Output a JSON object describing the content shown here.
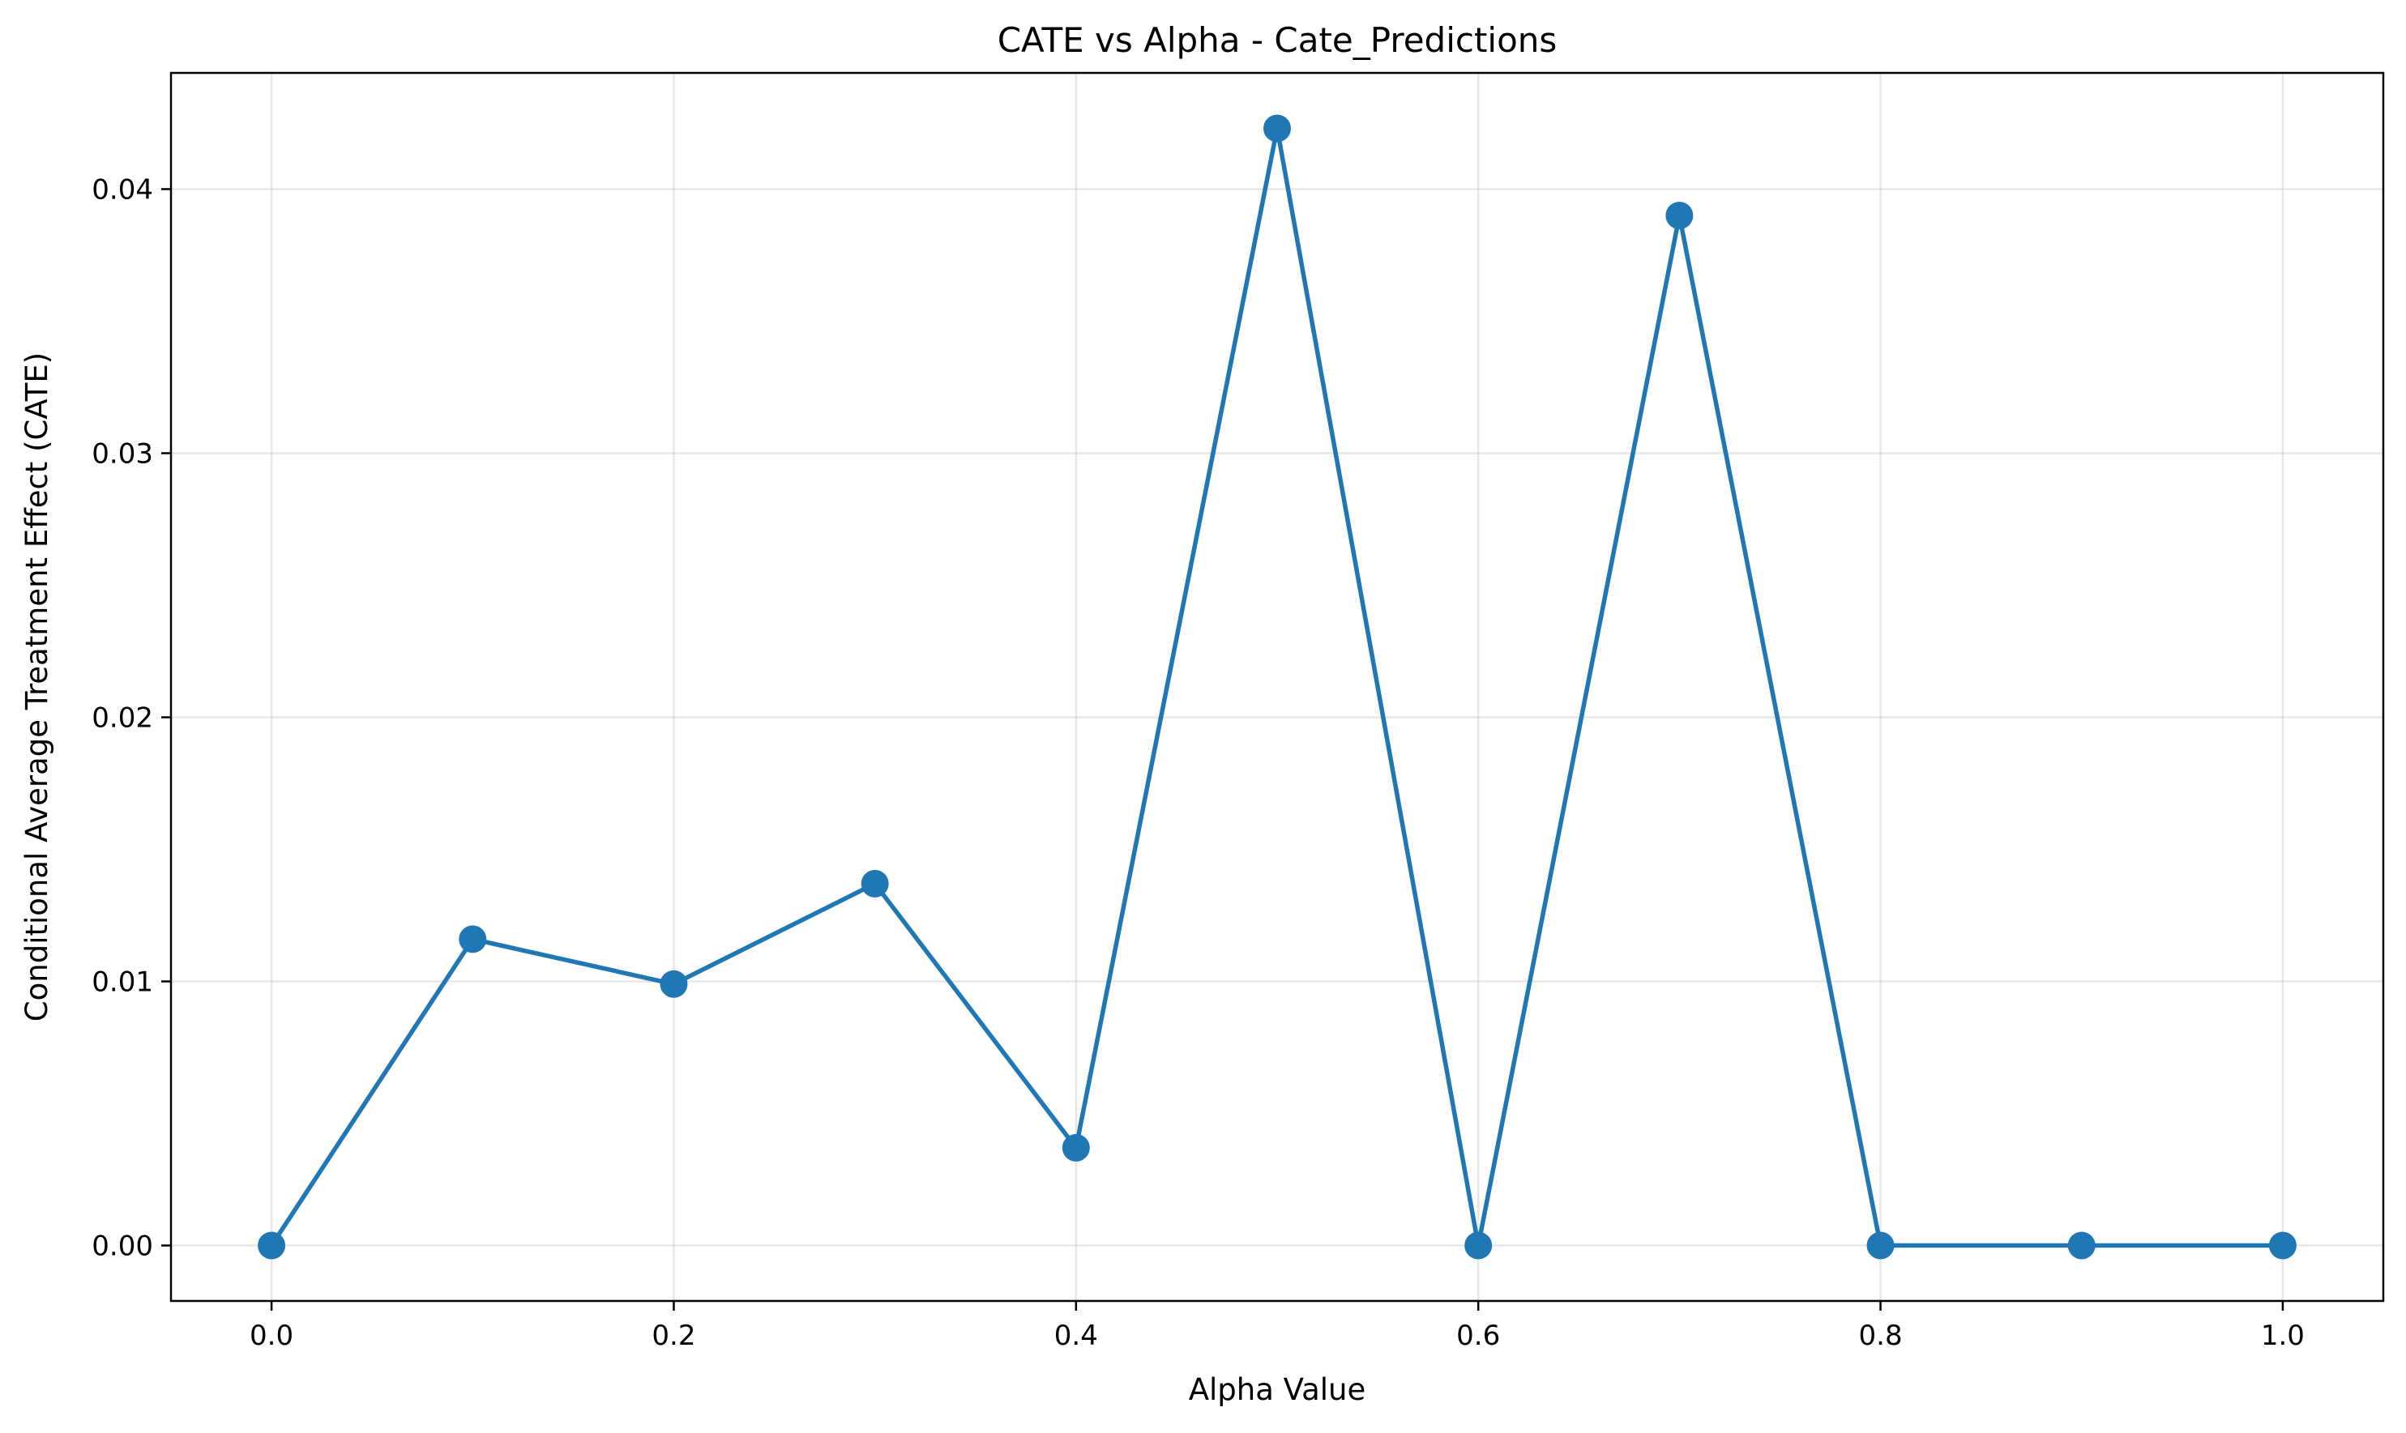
{
  "chart_data": {
    "type": "line",
    "title": "CATE vs Alpha - Cate_Predictions",
    "xlabel": "Alpha Value",
    "ylabel": "Conditional Average Treatment Effect (CATE)",
    "xlim": [
      -0.05,
      1.05
    ],
    "ylim": [
      -0.0021,
      0.0444
    ],
    "xticks": [
      0.0,
      0.2,
      0.4,
      0.6,
      0.8,
      1.0
    ],
    "xtick_labels": [
      "0.0",
      "0.2",
      "0.4",
      "0.6",
      "0.8",
      "1.0"
    ],
    "yticks": [
      0.0,
      0.01,
      0.02,
      0.03,
      0.04
    ],
    "ytick_labels": [
      "0.00",
      "0.01",
      "0.02",
      "0.03",
      "0.04"
    ],
    "grid": true,
    "color": "#1f77b4",
    "series": [
      {
        "x": [
          0.0,
          0.1,
          0.2,
          0.3,
          0.4,
          0.5,
          0.6,
          0.7,
          0.8,
          0.9,
          1.0
        ],
        "y": [
          0.0,
          0.0116,
          0.0099,
          0.0137,
          0.0037,
          0.0423,
          0.0,
          0.039,
          0.0,
          0.0,
          0.0
        ]
      }
    ]
  }
}
